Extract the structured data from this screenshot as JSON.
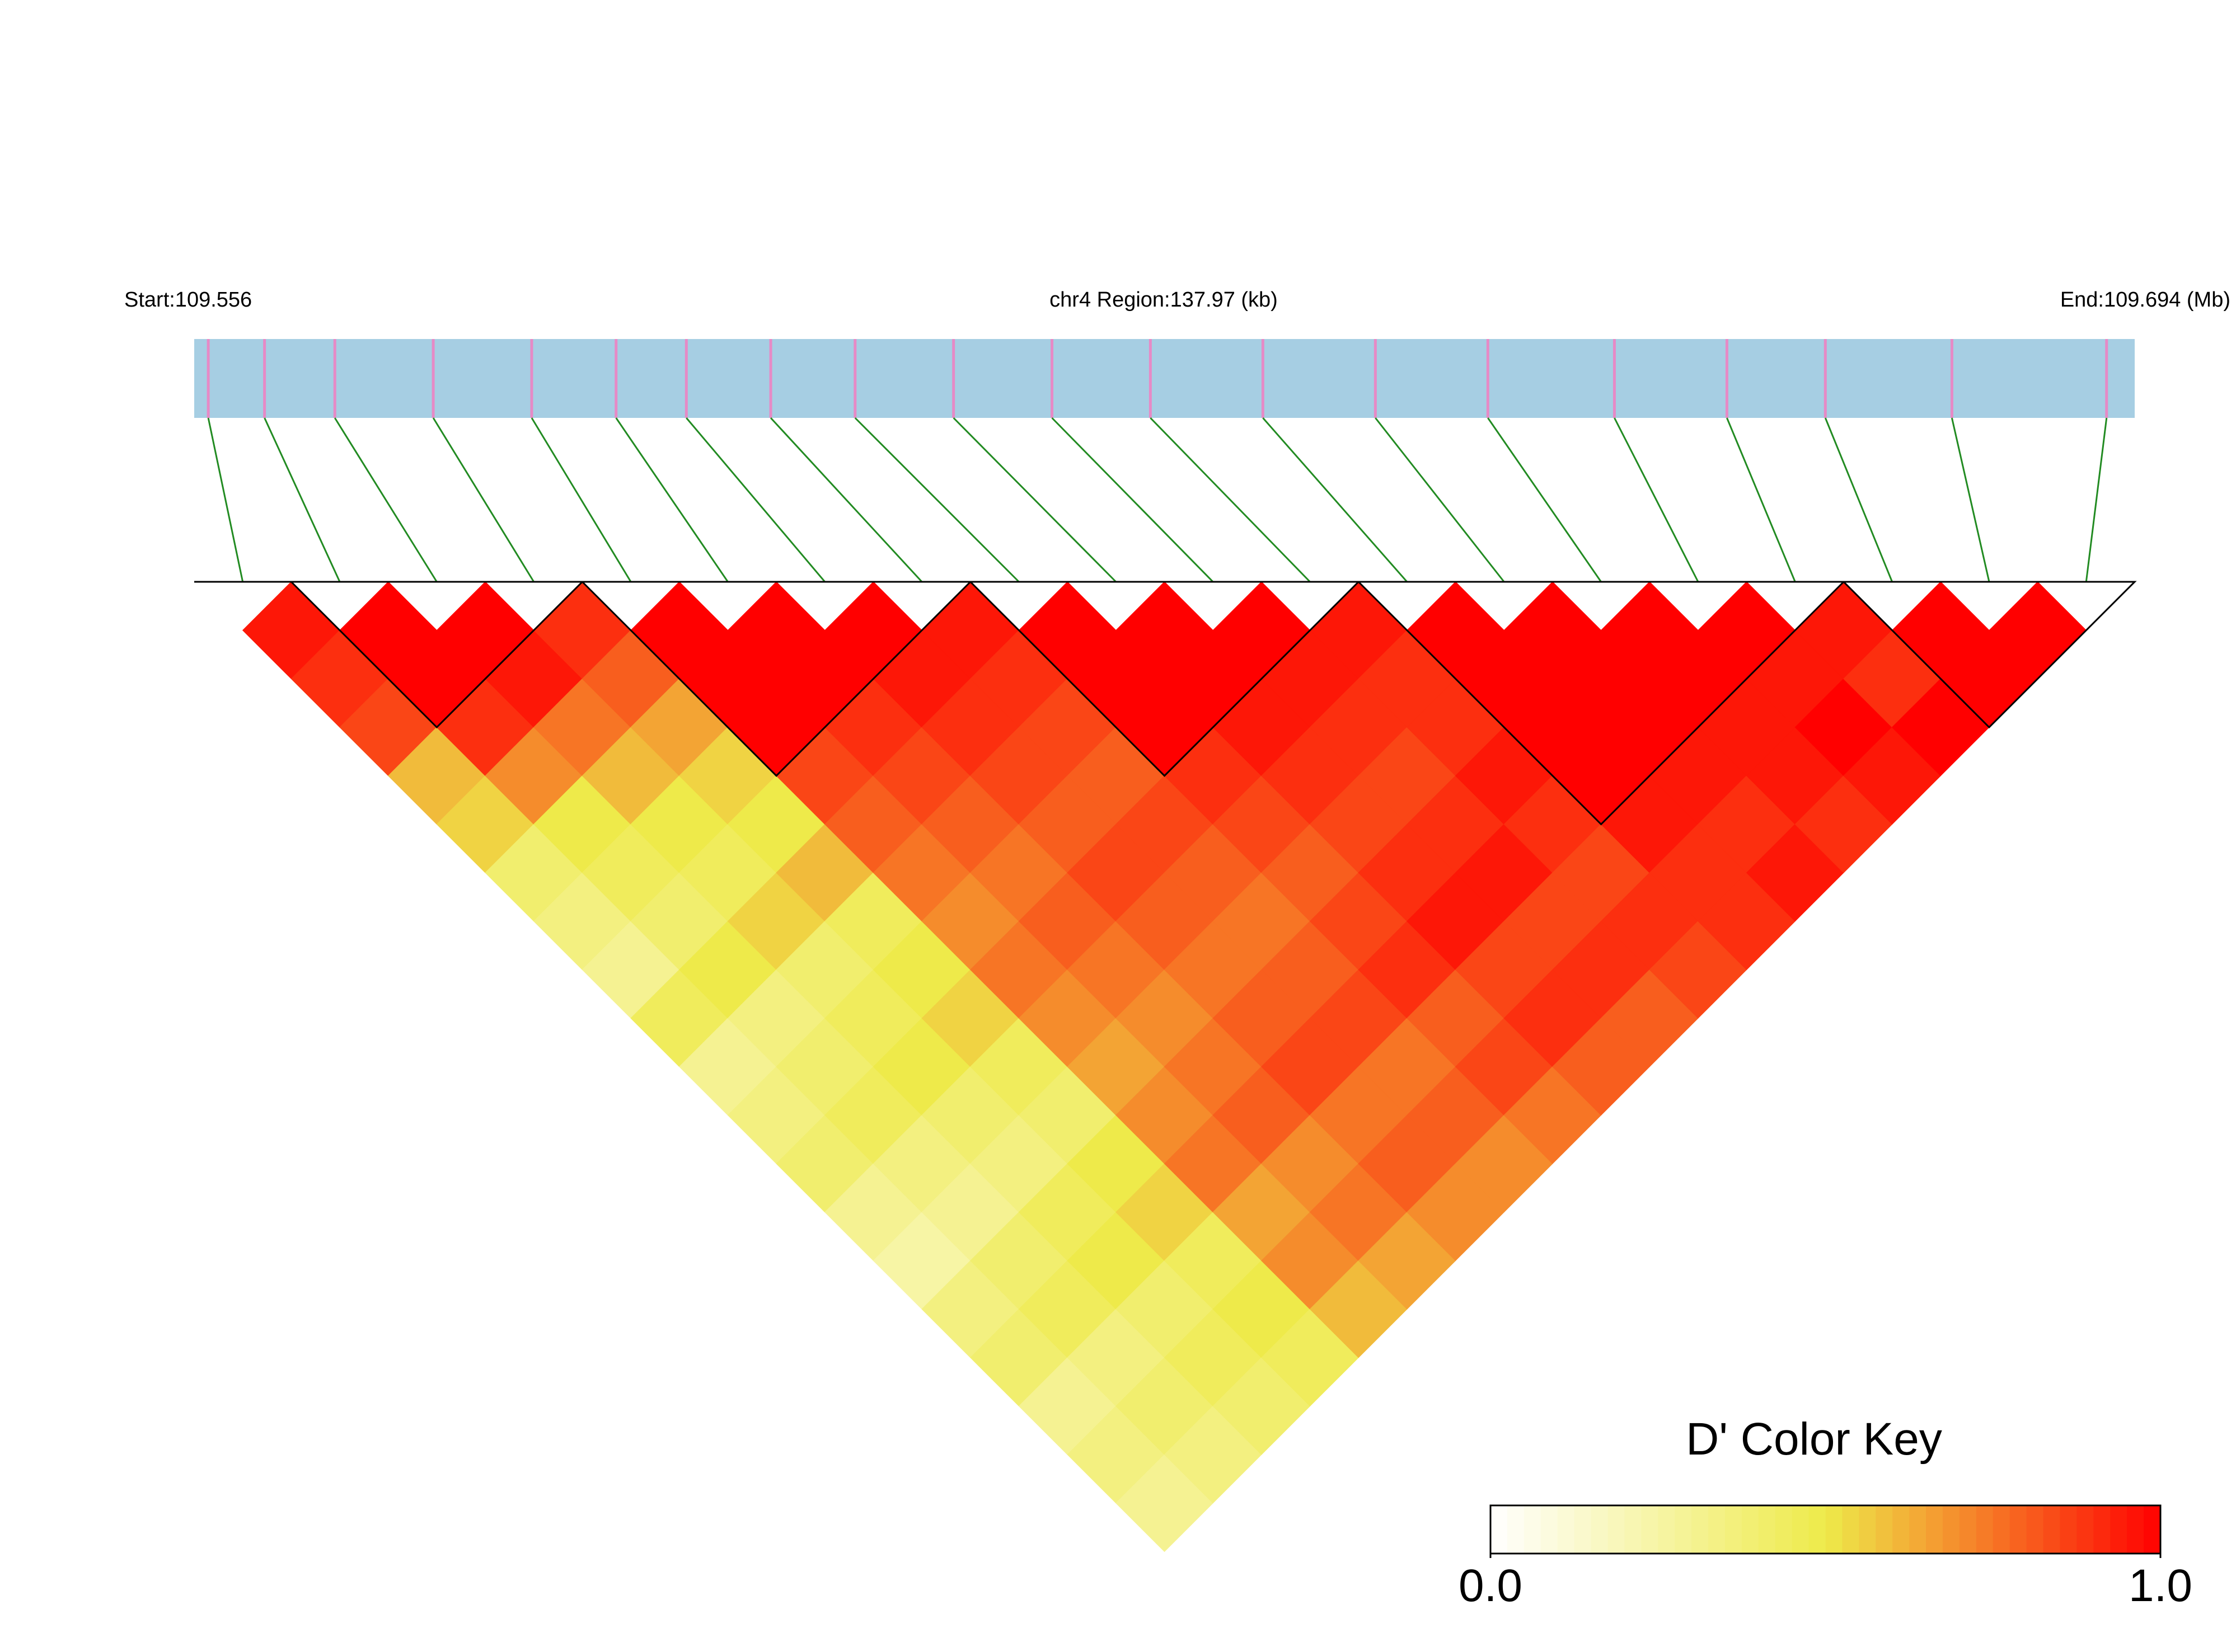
{
  "chart_data": {
    "type": "ld_heatmap",
    "start_label": "Start:109.556",
    "region_label": "chr4 Region:137.97 (kb)",
    "end_label": "End:109.694 (Mb)",
    "xlim": [
      109.556,
      109.694
    ],
    "positions": [
      109.557,
      109.561,
      109.566,
      109.573,
      109.58,
      109.586,
      109.591,
      109.597,
      109.603,
      109.61,
      109.617,
      109.624,
      109.632,
      109.64,
      109.648,
      109.657,
      109.665,
      109.672,
      109.681,
      109.692
    ],
    "dprime": [
      [
        0.95,
        0.9,
        0.85,
        0.6,
        0.55,
        0.4,
        0.35,
        0.3,
        0.45,
        0.3,
        0.35,
        0.4,
        0.3,
        0.25,
        0.35,
        0.4,
        0.3,
        0.35,
        0.3
      ],
      [
        1,
        1,
        0.9,
        0.7,
        0.5,
        0.45,
        0.4,
        0.5,
        0.35,
        0.4,
        0.45,
        0.35,
        0.3,
        0.4,
        0.45,
        0.35,
        0.4,
        0.35
      ],
      [
        1,
        0.95,
        0.75,
        0.6,
        0.5,
        0.45,
        0.55,
        0.4,
        0.45,
        0.5,
        0.4,
        0.35,
        0.45,
        0.5,
        0.4,
        0.45,
        0.4
      ],
      [
        0.9,
        0.8,
        0.65,
        0.55,
        0.5,
        0.6,
        0.45,
        0.5,
        0.55,
        0.45,
        0.4,
        0.5,
        0.55,
        0.45,
        0.5,
        0.45
      ],
      [
        1,
        1,
        1,
        0.85,
        0.8,
        0.75,
        0.7,
        0.75,
        0.7,
        0.65,
        0.7,
        0.75,
        0.65,
        0.7,
        0.6
      ],
      [
        1,
        1,
        0.9,
        0.85,
        0.8,
        0.75,
        0.8,
        0.75,
        0.7,
        0.75,
        0.8,
        0.7,
        0.75,
        0.65
      ],
      [
        1,
        0.95,
        0.9,
        0.85,
        0.8,
        0.85,
        0.8,
        0.75,
        0.8,
        0.85,
        0.75,
        0.8,
        0.7
      ],
      [
        0.95,
        0.9,
        0.85,
        0.8,
        0.85,
        0.8,
        0.75,
        0.8,
        0.85,
        0.75,
        0.8,
        0.7
      ],
      [
        1,
        1,
        1,
        0.9,
        0.85,
        0.8,
        0.85,
        0.9,
        0.8,
        0.85,
        0.75
      ],
      [
        1,
        1,
        0.95,
        0.9,
        0.85,
        0.9,
        0.95,
        0.85,
        0.9,
        0.8
      ],
      [
        1,
        0.95,
        0.9,
        0.85,
        0.9,
        0.95,
        0.85,
        0.9,
        0.8
      ],
      [
        0.95,
        0.9,
        0.9,
        0.95,
        0.9,
        0.85,
        0.9,
        0.85
      ],
      [
        1,
        1,
        1,
        1,
        0.95,
        0.9,
        0.9
      ],
      [
        1,
        1,
        1,
        0.95,
        0.9,
        0.95
      ],
      [
        1,
        1,
        0.95,
        0.95,
        0.9
      ],
      [
        1,
        0.95,
        1,
        0.95
      ],
      [
        0.95,
        0.9,
        1
      ],
      [
        1,
        1
      ],
      [
        1
      ]
    ],
    "blocks": [
      [
        1,
        3
      ],
      [
        4,
        7
      ],
      [
        8,
        11
      ],
      [
        12,
        16
      ],
      [
        17,
        19
      ]
    ],
    "colormap": [
      "#ffffff",
      "#eeea4a",
      "#ff0000"
    ],
    "track_color": "#a6cee3",
    "snp_color": "#e68ac6",
    "link_color": "#228b22",
    "colorbar": {
      "title": "D' Color Key",
      "lim": [
        0,
        1
      ],
      "ticks": [
        {
          "value": 0,
          "label": "0.0"
        },
        {
          "value": 1,
          "label": "1.0"
        }
      ]
    }
  }
}
